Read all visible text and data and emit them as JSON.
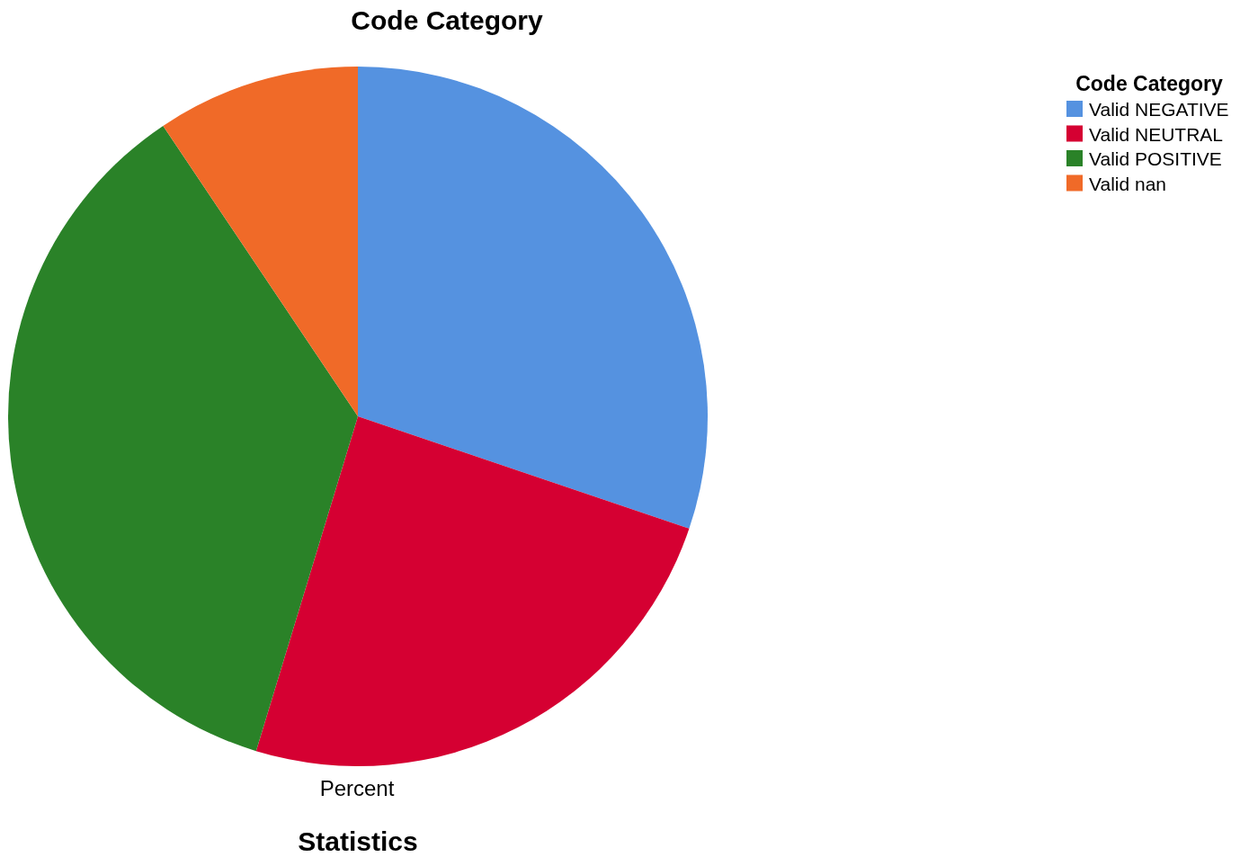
{
  "chart_data": {
    "type": "pie",
    "title": "Code Category",
    "legend_title": "Code Category",
    "xlabel": "Percent",
    "annotations": [
      "Statistics"
    ],
    "categories": [
      "Valid NEGATIVE",
      "Valid NEUTRAL",
      "Valid POSITIVE",
      "Valid nan"
    ],
    "values": [
      30.2,
      24.5,
      35.9,
      9.4
    ],
    "colors": [
      "#5592e0",
      "#d50032",
      "#2a8228",
      "#f06a28"
    ],
    "legend": "top right"
  }
}
